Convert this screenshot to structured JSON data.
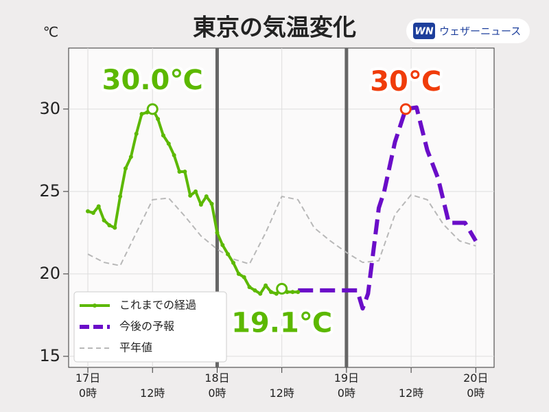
{
  "chart_data": {
    "type": "line",
    "title": "東京の気温変化",
    "y_label": "℃",
    "logo": {
      "mark": "WN",
      "text": "ウェザーニュース"
    },
    "xlim": [
      -3.57,
      75.4
    ],
    "ylim": [
      14.33,
      33.7
    ],
    "yticks": [
      15,
      20,
      25,
      30
    ],
    "xticks": [
      {
        "value": 0,
        "label": "17日\n0時"
      },
      {
        "value": 12,
        "label": "12時"
      },
      {
        "value": 24,
        "label": "18日\n0時"
      },
      {
        "value": 36,
        "label": "12時"
      },
      {
        "value": 48,
        "label": "19日\n0時"
      },
      {
        "value": 60,
        "label": "12時"
      },
      {
        "value": 72,
        "label": "20日\n0時"
      }
    ],
    "grid": true,
    "vlines": [
      24,
      48
    ],
    "legend": "lower left",
    "series": [
      {
        "name": "これまでの経過",
        "color": "#5cb800",
        "style": "solid-dots",
        "x": [
          0,
          1,
          2,
          3,
          4,
          5,
          6,
          7,
          8,
          9,
          10,
          11,
          12,
          13,
          14,
          15,
          16,
          17,
          18,
          19,
          20,
          21,
          22,
          23,
          24,
          25,
          26,
          27,
          28,
          29,
          30,
          31,
          32,
          33,
          34,
          35,
          36,
          37,
          38,
          39
        ],
        "values": [
          23.8,
          23.7,
          24.1,
          23.25,
          22.95,
          22.8,
          24.7,
          26.4,
          27.1,
          28.5,
          29.7,
          29.8,
          30.0,
          29.4,
          28.4,
          27.9,
          27.2,
          26.2,
          26.2,
          24.75,
          25.0,
          24.2,
          24.7,
          24.25,
          22.5,
          21.75,
          21.2,
          20.67,
          20.0,
          19.8,
          19.2,
          19.0,
          18.8,
          19.3,
          18.9,
          18.8,
          19.1,
          18.9,
          18.9,
          18.9
        ]
      },
      {
        "name": "今後の予報",
        "color": "#6a0dc8",
        "style": "thick-dash",
        "x": [
          39,
          42,
          45,
          48,
          50,
          51,
          52,
          54,
          55,
          57,
          59,
          61,
          63,
          65,
          67,
          68,
          70,
          72
        ],
        "values": [
          19.0,
          19.0,
          19.0,
          19.0,
          19.0,
          17.9,
          18.8,
          24.0,
          25.0,
          28.0,
          30.0,
          30.1,
          27.5,
          25.8,
          23.1,
          23.1,
          23.1,
          22.0
        ]
      },
      {
        "name": "平年値",
        "color": "#b8b8b8",
        "style": "thin-dash",
        "x": [
          0,
          3,
          6,
          9,
          12,
          15,
          18,
          21,
          24,
          27,
          30,
          33,
          36,
          39,
          42,
          45,
          48,
          51,
          54,
          57,
          60,
          63,
          66,
          69,
          72
        ],
        "values": [
          21.2,
          20.7,
          20.5,
          22.5,
          24.5,
          24.6,
          23.5,
          22.3,
          21.5,
          20.9,
          20.6,
          22.5,
          24.7,
          24.5,
          22.8,
          22.0,
          21.3,
          20.7,
          20.8,
          23.6,
          24.8,
          24.5,
          23.0,
          22.0,
          21.7
        ]
      }
    ],
    "markers": [
      {
        "x": 12,
        "y": 30.0,
        "color": "#5cb800",
        "label": "30.0℃"
      },
      {
        "x": 36,
        "y": 19.1,
        "color": "#5cb800",
        "label": "19.1℃"
      },
      {
        "x": 59,
        "y": 30,
        "color": "#f03c0a",
        "label": "30℃"
      }
    ]
  }
}
